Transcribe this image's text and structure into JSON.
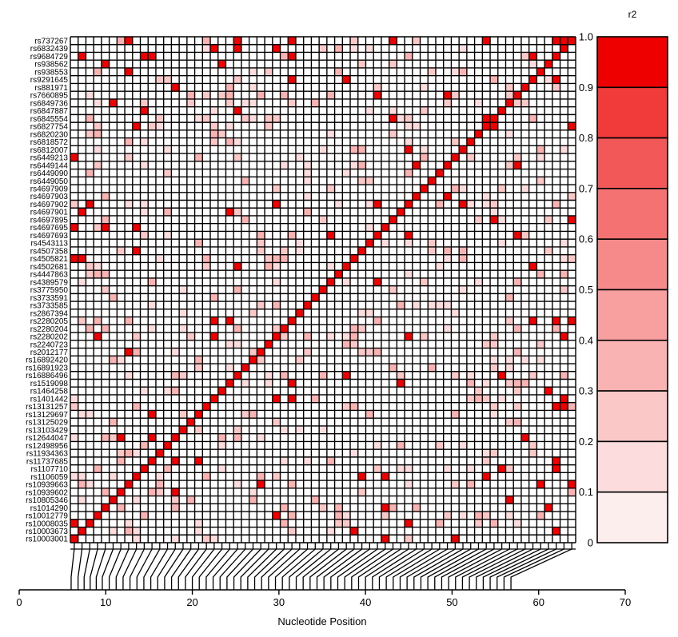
{
  "chart_data": {
    "type": "heatmap",
    "title": "",
    "xlabel": "Nucleotide Position",
    "ylabel": "",
    "x_ticks": [
      0,
      10,
      20,
      30,
      40,
      50,
      60,
      70
    ],
    "xlim": [
      0,
      70
    ],
    "legend": {
      "title": "r2",
      "ticks": [
        "0",
        "0.1",
        "0.2",
        "0.3",
        "0.4",
        "0.5",
        "0.6",
        "0.7",
        "0.8",
        "0.9",
        "1.0"
      ],
      "colors": [
        "#ffffff",
        "#fdeeee",
        "#fcdcdc",
        "#fbc8c8",
        "#f9b3b3",
        "#f89f9f",
        "#f68a8a",
        "#f47272",
        "#f35858",
        "#f13a3a",
        "#ee0000"
      ],
      "placement": "right"
    },
    "snps": [
      "rs737267",
      "rs6832439",
      "rs9684729",
      "rs938562",
      "rs938553",
      "rs9291645",
      "rs881971",
      "rs7660895",
      "rs6849736",
      "rs6847887",
      "rs6845554",
      "rs6827754",
      "rs6820230",
      "rs6818572",
      "rs6812007",
      "rs6449213",
      "rs6449144",
      "rs6449090",
      "rs6449050",
      "rs4697909",
      "rs4697903",
      "rs4697902",
      "rs4697901",
      "rs4697895",
      "rs4697695",
      "rs4697693",
      "rs4543113",
      "rs4507358",
      "rs4505821",
      "rs4502681",
      "rs4447863",
      "rs4389579",
      "rs3775950",
      "rs3733591",
      "rs3733585",
      "rs2867394",
      "rs2280205",
      "rs2280204",
      "rs2280202",
      "rs2240723",
      "rs2012177",
      "rs16892420",
      "rs16891923",
      "rs16886496",
      "rs1519098",
      "rs1464258",
      "rs1401442",
      "rs13131257",
      "rs13129697",
      "rs13125029",
      "rs13103429",
      "rs12644047",
      "rs12498956",
      "rs11934363",
      "rs11737685",
      "rs1107710",
      "rs1106059",
      "rs10939663",
      "rs10939602",
      "rs10805346",
      "rs1014290",
      "rs10012779",
      "rs10008035",
      "rs10003673",
      "rs10003001"
    ],
    "positions": [
      6.0,
      6.8,
      7.5,
      8.2,
      8.9,
      9.6,
      10.4,
      11.2,
      12.0,
      12.8,
      13.6,
      14.4,
      15.2,
      16.0,
      16.8,
      17.6,
      18.4,
      19.2,
      20.0,
      20.8,
      21.6,
      22.4,
      23.2,
      24.0,
      24.8,
      25.6,
      26.4,
      27.2,
      28.0,
      28.8,
      29.6,
      30.4,
      31.2,
      32.0,
      32.8,
      33.6,
      34.4,
      35.2,
      36.0,
      36.8,
      37.6,
      38.4,
      39.2,
      40.0,
      40.8,
      41.6,
      42.4,
      43.2,
      44.0,
      44.8,
      45.6,
      46.4,
      47.2,
      48.0,
      48.8,
      49.6,
      50.4,
      51.2,
      52.0,
      52.8,
      53.6,
      54.4,
      55.2,
      56.0,
      56.8
    ],
    "r2_levels": [
      0.15,
      0.25,
      0.35
    ],
    "high_ld": [
      {
        "row": "rs737267",
        "col": 22,
        "r2": 1.0
      },
      {
        "row": "rs737267",
        "col": 63,
        "r2": 1.0
      },
      {
        "row": "rs737267",
        "col": 64,
        "r2": 1.0
      },
      {
        "row": "rs6832439",
        "col": 22,
        "r2": 1.0
      },
      {
        "row": "rs6832439",
        "col": 64,
        "r2": 1.0
      },
      {
        "row": "rs13131257",
        "col": 63,
        "r2": 1.0
      },
      {
        "row": "rs13131257",
        "col": 64,
        "r2": 1.0
      },
      {
        "row": "rs6845554",
        "col": 54,
        "r2": 1.0
      },
      {
        "row": "rs6845554",
        "col": 55,
        "r2": 1.0
      },
      {
        "row": "rs6827754",
        "col": 54,
        "r2": 1.0
      },
      {
        "row": "rs6827754",
        "col": 55,
        "r2": 1.0
      },
      {
        "row": "rs4505821",
        "col": 1,
        "r2": 1.0
      },
      {
        "row": "rs4697901",
        "col": 2,
        "r2": 1.0
      },
      {
        "row": "rs10008035",
        "col": 1,
        "r2": 1.0
      },
      {
        "row": "rs10003001",
        "col": 1,
        "r2": 1.0
      }
    ]
  }
}
